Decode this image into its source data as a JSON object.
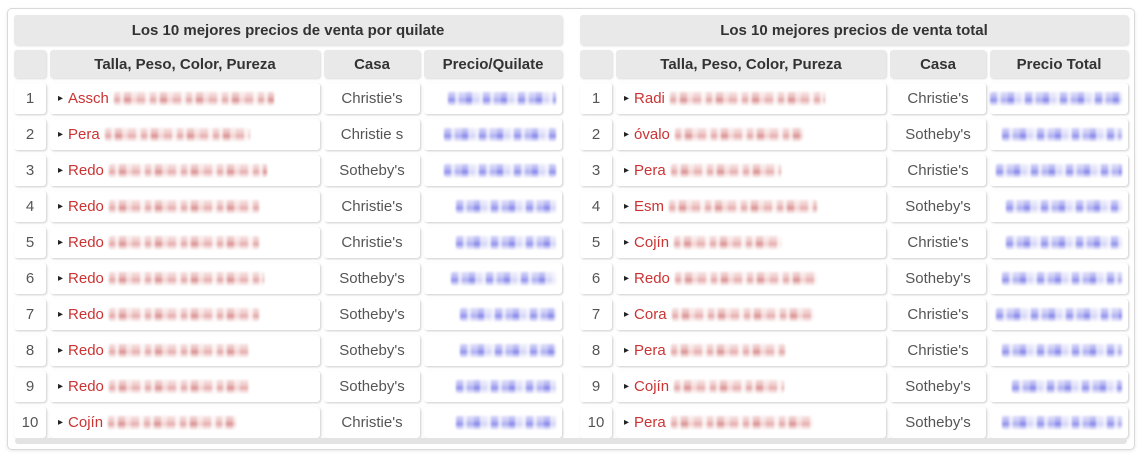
{
  "icons": {
    "row_marker": "▸"
  },
  "colors": {
    "red_text": "#cc3333",
    "red_redaction": "#e0a0a0",
    "blue_redaction": "#9a9aee",
    "header_bg": "#e9e9e9",
    "header_text": "#333333",
    "body_text": "#555555"
  },
  "tables": [
    {
      "title": "Los 10 mejores precios de venta por quilate",
      "columns": [
        "",
        "Talla, Peso, Color, Pureza",
        "Casa",
        "Precio/Quilate"
      ],
      "rows": [
        {
          "rank": "1",
          "desc_prefix": "Assch",
          "desc_redacted_width": 160,
          "casa": "Christie's",
          "price_redacted_width": 108
        },
        {
          "rank": "2",
          "desc_prefix": "Pera",
          "desc_redacted_width": 145,
          "casa": "Christie s",
          "price_redacted_width": 112
        },
        {
          "rank": "3",
          "desc_prefix": "Redo",
          "desc_redacted_width": 158,
          "casa": "Sotheby's",
          "price_redacted_width": 112
        },
        {
          "rank": "4",
          "desc_prefix": "Redo",
          "desc_redacted_width": 150,
          "casa": "Christie's",
          "price_redacted_width": 100
        },
        {
          "rank": "5",
          "desc_prefix": "Redo",
          "desc_redacted_width": 150,
          "casa": "Christie's",
          "price_redacted_width": 100
        },
        {
          "rank": "6",
          "desc_prefix": "Redo",
          "desc_redacted_width": 155,
          "casa": "Sotheby's",
          "price_redacted_width": 105
        },
        {
          "rank": "7",
          "desc_prefix": "Redo",
          "desc_redacted_width": 150,
          "casa": "Sotheby's",
          "price_redacted_width": 96
        },
        {
          "rank": "8",
          "desc_prefix": "Redo",
          "desc_redacted_width": 140,
          "casa": "Sotheby's",
          "price_redacted_width": 96
        },
        {
          "rank": "9",
          "desc_prefix": "Redo",
          "desc_redacted_width": 140,
          "casa": "Sotheby's",
          "price_redacted_width": 100
        },
        {
          "rank": "10",
          "desc_prefix": "Cojín",
          "desc_redacted_width": 128,
          "casa": "Christie's",
          "price_redacted_width": 100
        }
      ]
    },
    {
      "title": "Los 10 mejores precios de venta total",
      "columns": [
        "",
        "Talla, Peso, Color, Pureza",
        "Casa",
        "Precio Total"
      ],
      "rows": [
        {
          "rank": "1",
          "desc_prefix": "Radi",
          "desc_redacted_width": 155,
          "casa": "Christie's",
          "price_redacted_width": 132
        },
        {
          "rank": "2",
          "desc_prefix": "óvalo",
          "desc_redacted_width": 128,
          "casa": "Sotheby's",
          "price_redacted_width": 120
        },
        {
          "rank": "3",
          "desc_prefix": "Pera",
          "desc_redacted_width": 110,
          "casa": "Christie's",
          "price_redacted_width": 126
        },
        {
          "rank": "4",
          "desc_prefix": "Esm",
          "desc_redacted_width": 148,
          "casa": "Sotheby's",
          "price_redacted_width": 116
        },
        {
          "rank": "5",
          "desc_prefix": "Cojín",
          "desc_redacted_width": 108,
          "casa": "Christie's",
          "price_redacted_width": 116
        },
        {
          "rank": "6",
          "desc_prefix": "Redo",
          "desc_redacted_width": 142,
          "casa": "Sotheby's",
          "price_redacted_width": 120
        },
        {
          "rank": "7",
          "desc_prefix": "Cora",
          "desc_redacted_width": 142,
          "casa": "Christie's",
          "price_redacted_width": 126
        },
        {
          "rank": "8",
          "desc_prefix": "Pera",
          "desc_redacted_width": 114,
          "casa": "Christie's",
          "price_redacted_width": 120
        },
        {
          "rank": "9",
          "desc_prefix": "Cojín",
          "desc_redacted_width": 110,
          "casa": "Sotheby's",
          "price_redacted_width": 110
        },
        {
          "rank": "10",
          "desc_prefix": "Pera",
          "desc_redacted_width": 142,
          "casa": "Sotheby's",
          "price_redacted_width": 120
        }
      ]
    }
  ]
}
